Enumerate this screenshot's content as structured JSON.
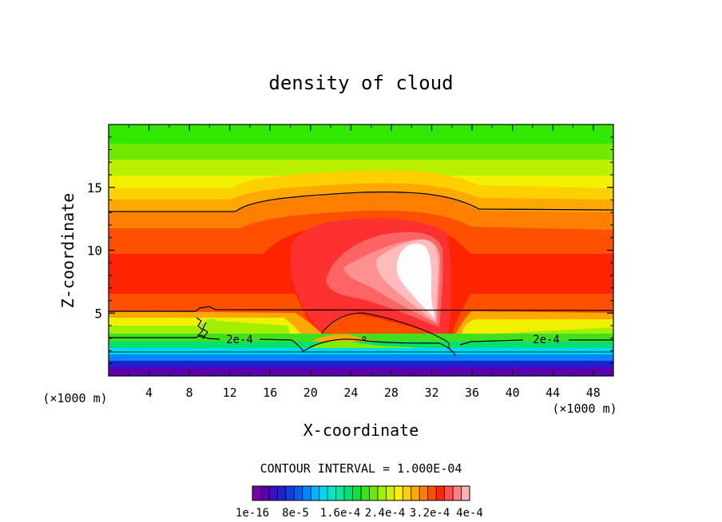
{
  "chart_data": {
    "type": "heatmap",
    "title": "density of cloud",
    "xlabel": "X-coordinate",
    "ylabel": "Z-coordinate",
    "x_unit_left": "(×1000 m)",
    "x_unit_right": "(×1000 m)",
    "xlim": [
      0,
      50
    ],
    "ylim": [
      0,
      20
    ],
    "x_ticks": [
      4,
      8,
      12,
      16,
      20,
      24,
      28,
      32,
      36,
      40,
      44,
      48
    ],
    "y_ticks": [
      5,
      10,
      15
    ],
    "contour_interval_text": "CONTOUR INTERVAL = 1.000E-04",
    "contour_labels": [
      {
        "text": "2e-4",
        "x": 12.5,
        "z": 3.1
      },
      {
        "text": "2e-4",
        "x": 43.5,
        "z": 3.1
      }
    ],
    "colorbar": {
      "colors": [
        "#7a00a8",
        "#5a00b0",
        "#3a10c0",
        "#2020d0",
        "#1040e0",
        "#0060f0",
        "#0088ff",
        "#00b4ff",
        "#00d8f0",
        "#00e8c8",
        "#00e8a0",
        "#00e070",
        "#10e040",
        "#40e020",
        "#70e800",
        "#a0f000",
        "#d0f000",
        "#f8f000",
        "#ffd000",
        "#ffa800",
        "#ff8000",
        "#ff5000",
        "#ff2800",
        "#ff5050",
        "#ff8080",
        "#ffb0b0"
      ],
      "labels": [
        "1e-16",
        "8e-5",
        "1.6e-4",
        "2.4e-4",
        "3.2e-4",
        "4e-4"
      ]
    }
  }
}
